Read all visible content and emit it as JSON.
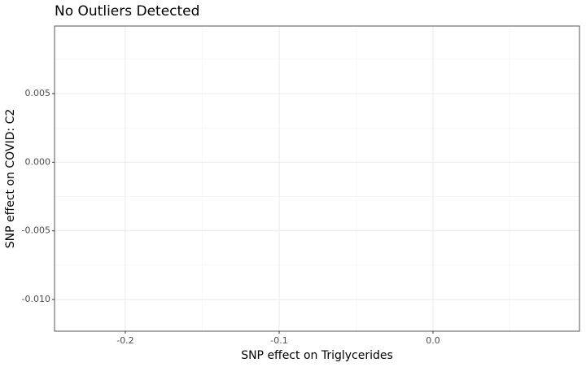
{
  "chart_data": {
    "type": "scatter",
    "title": "No Outliers Detected",
    "x_label": "SNP effect on Triglycerides",
    "y_label": "SNP effect on COVID: C2",
    "x": [],
    "y": [],
    "color": "#000000",
    "xlim": [
      -0.246,
      0.0952
    ],
    "xticks": [
      -0.2,
      -0.1,
      {
        "value": 0,
        "label": "0.0"
      }
    ],
    "ylim": [
      -0.01231,
      0.00992
    ],
    "yticks": [
      0.005,
      {
        "value": 0,
        "label": "0.000"
      },
      -0.005,
      {
        "value": -0.01,
        "label": "-0.010"
      }
    ],
    "grid": true
  }
}
